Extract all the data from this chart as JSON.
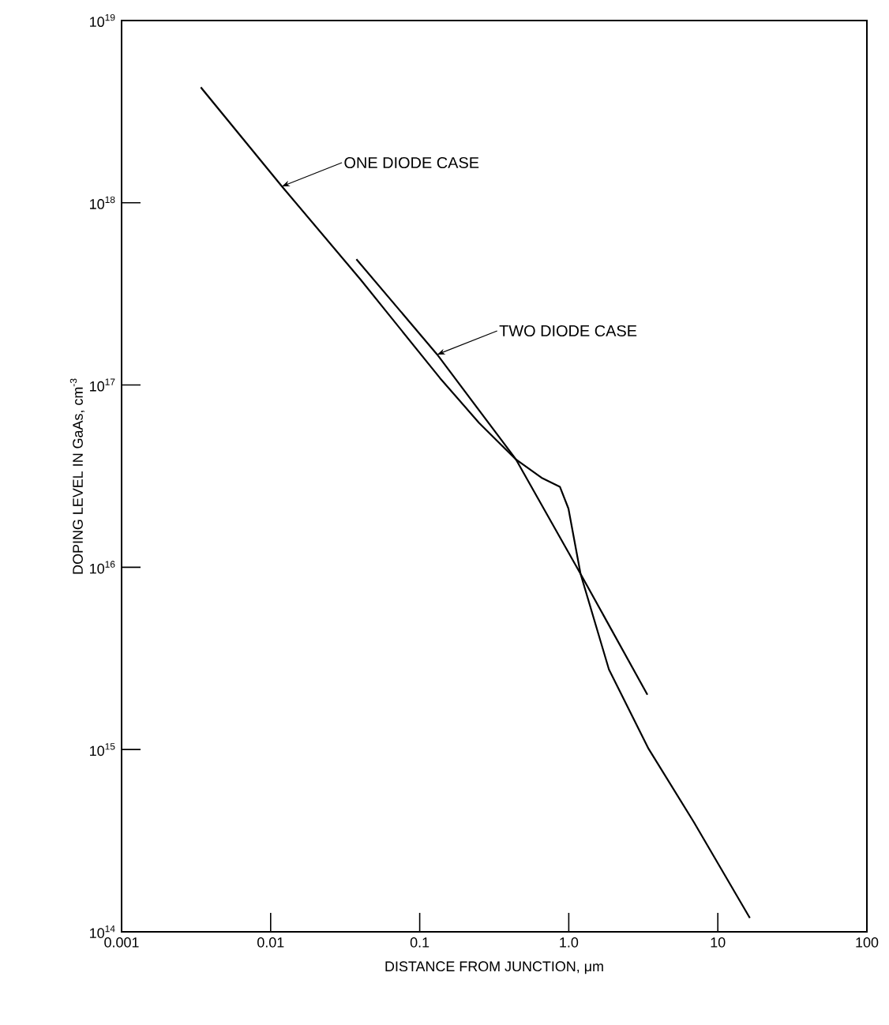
{
  "chart_data": {
    "type": "line",
    "xlabel": "DISTANCE FROM JUNCTION, μm",
    "ylabel": "DOPING LEVEL IN GaAs, cm$^{-3}$",
    "log": "xy",
    "xlim": [
      0.001,
      100
    ],
    "ylim": [
      100000000000000.0,
      1e+19
    ],
    "xticks": [
      0.001,
      0.01,
      0.1,
      {
        "value": 1,
        "label": "1.0"
      },
      10,
      100
    ],
    "yticks": [
      {
        "value": 100000000000000.0,
        "label": "10$^{14}$"
      },
      {
        "value": 1000000000000000.0,
        "label": "10$^{15}$"
      },
      {
        "value": 1e+16,
        "label": "10$^{16}$"
      },
      {
        "value": 1e+17,
        "label": "10$^{17}$"
      },
      {
        "value": 1e+18,
        "label": "10$^{18}$"
      },
      {
        "value": 1e+19,
        "label": "10$^{19}$"
      }
    ],
    "series": [
      {
        "color": "#000000",
        "x": [
          0.0034,
          0.0119,
          0.04,
          0.137,
          0.25,
          0.443,
          0.656,
          0.873,
          0.995,
          1.2,
          1.86,
          3.43,
          6.9,
          16.4
        ],
        "values": [
          4.3e+18,
          1.23e+18,
          3.8e+17,
          1.09e+17,
          6.2e+16,
          3.9e+16,
          3.1e+16,
          2.76e+16,
          2.1e+16,
          9200000000000000.0,
          2750000000000000.0,
          1010000000000000.0,
          400000000000000.0,
          119000000000000.0
        ]
      },
      {
        "color": "#000000",
        "x": [
          0.0376,
          0.131,
          0.443,
          1.2,
          3.37
        ],
        "values": [
          4.9e+17,
          1.47e+17,
          3.9e+16,
          9200000000000000.0,
          2000000000000000.0
        ]
      }
    ],
    "annotations": [
      {
        "text": "ONE DIODE CASE",
        "x": 0.0119,
        "y": 1.23e+18
      },
      {
        "text": "TWO DIODE CASE",
        "x": 0.131,
        "y": 1.47e+17
      }
    ]
  }
}
